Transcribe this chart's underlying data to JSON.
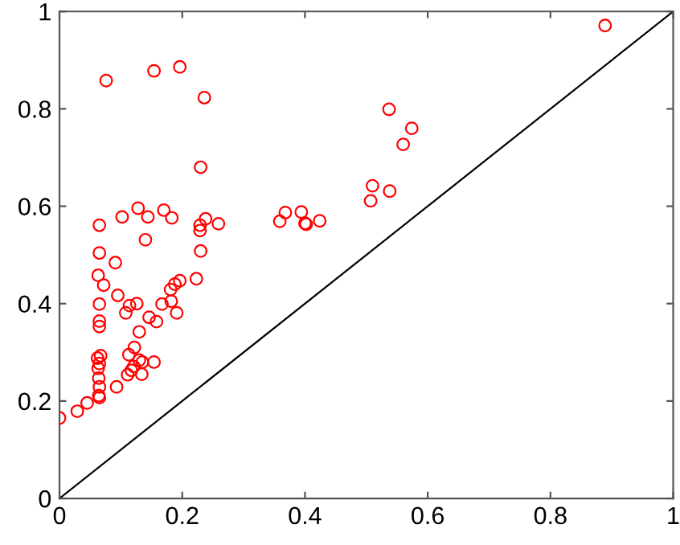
{
  "chart_data": {
    "type": "scatter",
    "marker": "circle",
    "grid": false,
    "legend": false,
    "xlim": [
      0,
      1
    ],
    "ylim": [
      0,
      1
    ],
    "xticks": [
      0,
      0.2,
      0.4,
      0.6,
      0.8,
      1
    ],
    "yticks": [
      0,
      0.2,
      0.4,
      0.6,
      0.8,
      1
    ],
    "series": [
      {
        "color": "#ff0000",
        "x": [
          0.076,
          0.154,
          0.196,
          0.236,
          0.23,
          0.065,
          0.102,
          0.128,
          0.144,
          0.17,
          0.183,
          0.229,
          0.229,
          0.238,
          0.259,
          0.14,
          0.065,
          0.23,
          0.091,
          0.063,
          0.072,
          0.065,
          0.095,
          0.108,
          0.114,
          0.126,
          0.065,
          0.065,
          0.223,
          0.196,
          0.188,
          0.181,
          0.167,
          0.182,
          0.191,
          0.146,
          0.158,
          0.13,
          0.122,
          0.113,
          0.067,
          0.062,
          0.065,
          0.063,
          0.13,
          0.135,
          0.154,
          0.121,
          0.117,
          0.111,
          0.134,
          0.064,
          0.065,
          0.093,
          0.064,
          0.065,
          0.045,
          0.029,
          0.0,
          0.889,
          0.537,
          0.574,
          0.56,
          0.51,
          0.538,
          0.507,
          0.368,
          0.394,
          0.359,
          0.402,
          0.4,
          0.424
        ],
        "values": [
          0.858,
          0.878,
          0.886,
          0.823,
          0.68,
          0.561,
          0.578,
          0.596,
          0.578,
          0.592,
          0.576,
          0.561,
          0.55,
          0.574,
          0.564,
          0.531,
          0.504,
          0.508,
          0.484,
          0.458,
          0.438,
          0.399,
          0.417,
          0.381,
          0.396,
          0.4,
          0.364,
          0.353,
          0.451,
          0.447,
          0.44,
          0.429,
          0.399,
          0.405,
          0.381,
          0.372,
          0.363,
          0.342,
          0.31,
          0.295,
          0.293,
          0.288,
          0.277,
          0.267,
          0.284,
          0.28,
          0.28,
          0.271,
          0.263,
          0.254,
          0.255,
          0.247,
          0.229,
          0.229,
          0.211,
          0.207,
          0.196,
          0.179,
          0.165,
          0.971,
          0.799,
          0.76,
          0.727,
          0.642,
          0.631,
          0.611,
          0.587,
          0.588,
          0.569,
          0.563,
          0.565,
          0.57
        ]
      },
      {
        "type": "line",
        "marker": "none",
        "color": "#000000",
        "x": [
          0,
          1
        ],
        "values": [
          0,
          1
        ]
      }
    ]
  }
}
